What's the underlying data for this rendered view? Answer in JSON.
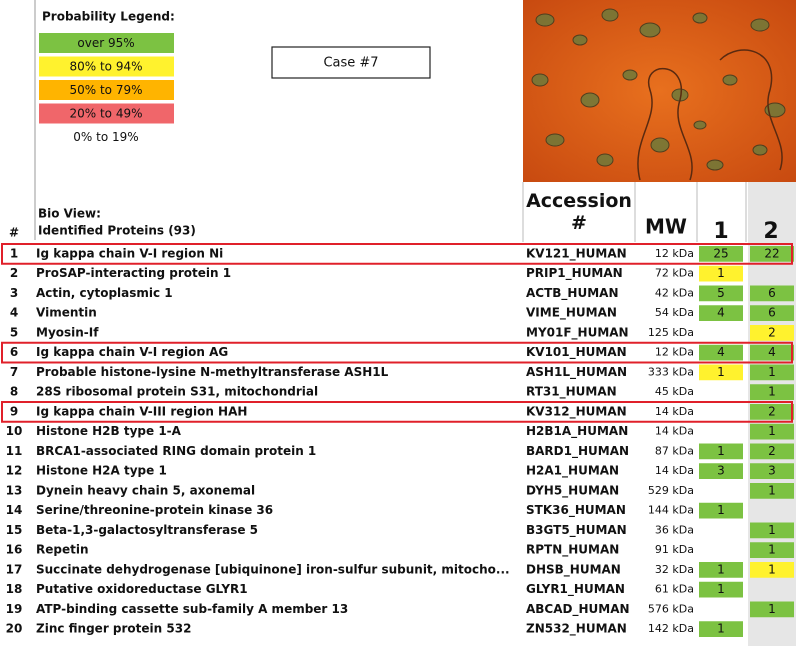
{
  "legend": {
    "title": "Probability Legend:",
    "items": [
      {
        "label": "over 95%",
        "color": "#7cc242"
      },
      {
        "label": "80% to 94%",
        "color": "#fff22e"
      },
      {
        "label": "50% to 79%",
        "color": "#ffb400"
      },
      {
        "label": "20% to  49%",
        "color": "#f0666a"
      },
      {
        "label": "0% to 19%",
        "color": "#ffffff"
      }
    ]
  },
  "case_label": "Case #7",
  "header": {
    "index": "#",
    "bio_view": "Bio View:",
    "identified": "Identified Proteins (93)",
    "accession": "Accession #",
    "mw": "MW",
    "sample1": "1",
    "sample2": "2"
  },
  "table": {
    "rows": [
      {
        "index": "1",
        "name": "Ig kappa chain V-I region Ni",
        "accession": "KV121_HUMAN",
        "mw": "12 kDa",
        "s1": {
          "value": 25,
          "color": "#7cc242"
        },
        "s2": {
          "value": 22,
          "color": "#7cc242"
        },
        "highlighted": true
      },
      {
        "index": "2",
        "name": "ProSAP-interacting protein 1",
        "accession": "PRIP1_HUMAN",
        "mw": "72 kDa",
        "s1": {
          "value": 1,
          "color": "#fff22e"
        },
        "s2": null,
        "highlighted": false
      },
      {
        "index": "3",
        "name": "Actin, cytoplasmic 1",
        "accession": "ACTB_HUMAN",
        "mw": "42 kDa",
        "s1": {
          "value": 5,
          "color": "#7cc242"
        },
        "s2": {
          "value": 6,
          "color": "#7cc242"
        },
        "highlighted": false
      },
      {
        "index": "4",
        "name": "Vimentin",
        "accession": "VIME_HUMAN",
        "mw": "54 kDa",
        "s1": {
          "value": 4,
          "color": "#7cc242"
        },
        "s2": {
          "value": 6,
          "color": "#7cc242"
        },
        "highlighted": false
      },
      {
        "index": "5",
        "name": "Myosin-If",
        "accession": "MY01F_HUMAN",
        "mw": "125 kDa",
        "s1": null,
        "s2": {
          "value": 2,
          "color": "#fff22e"
        },
        "highlighted": false
      },
      {
        "index": "6",
        "name": "Ig kappa chain V-I region AG",
        "accession": "KV101_HUMAN",
        "mw": "12 kDa",
        "s1": {
          "value": 4,
          "color": "#7cc242"
        },
        "s2": {
          "value": 4,
          "color": "#7cc242"
        },
        "highlighted": true
      },
      {
        "index": "7",
        "name": "Probable histone-lysine N-methyltransferase ASH1L",
        "accession": "ASH1L_HUMAN",
        "mw": "333 kDa",
        "s1": {
          "value": 1,
          "color": "#fff22e"
        },
        "s2": {
          "value": 1,
          "color": "#7cc242"
        },
        "highlighted": false
      },
      {
        "index": "8",
        "name": "28S ribosomal protein S31, mitochondrial",
        "accession": "RT31_HUMAN",
        "mw": "45 kDa",
        "s1": null,
        "s2": {
          "value": 1,
          "color": "#7cc242"
        },
        "highlighted": false
      },
      {
        "index": "9",
        "name": "Ig kappa chain V-III region HAH",
        "accession": "KV312_HUMAN",
        "mw": "14 kDa",
        "s1": null,
        "s2": {
          "value": 2,
          "color": "#7cc242"
        },
        "highlighted": true
      },
      {
        "index": "10",
        "name": "Histone H2B type 1-A",
        "accession": "H2B1A_HUMAN",
        "mw": "14 kDa",
        "s1": null,
        "s2": {
          "value": 1,
          "color": "#7cc242"
        },
        "highlighted": false
      },
      {
        "index": "11",
        "name": "BRCA1-associated RING domain protein 1",
        "accession": "BARD1_HUMAN",
        "mw": "87 kDa",
        "s1": {
          "value": 1,
          "color": "#7cc242"
        },
        "s2": {
          "value": 2,
          "color": "#7cc242"
        },
        "highlighted": false
      },
      {
        "index": "12",
        "name": "Histone H2A type 1",
        "accession": "H2A1_HUMAN",
        "mw": "14 kDa",
        "s1": {
          "value": 3,
          "color": "#7cc242"
        },
        "s2": {
          "value": 3,
          "color": "#7cc242"
        },
        "highlighted": false
      },
      {
        "index": "13",
        "name": "Dynein heavy chain 5, axonemal",
        "accession": "DYH5_HUMAN",
        "mw": "529 kDa",
        "s1": null,
        "s2": {
          "value": 1,
          "color": "#7cc242"
        },
        "highlighted": false
      },
      {
        "index": "14",
        "name": "Serine/threonine-protein kinase 36",
        "accession": "STK36_HUMAN",
        "mw": "144 kDa",
        "s1": {
          "value": 1,
          "color": "#7cc242"
        },
        "s2": null,
        "highlighted": false
      },
      {
        "index": "15",
        "name": "Beta-1,3-galactosyltransferase 5",
        "accession": "B3GT5_HUMAN",
        "mw": "36 kDa",
        "s1": null,
        "s2": {
          "value": 1,
          "color": "#7cc242"
        },
        "highlighted": false
      },
      {
        "index": "16",
        "name": "Repetin",
        "accession": "RPTN_HUMAN",
        "mw": "91 kDa",
        "s1": null,
        "s2": {
          "value": 1,
          "color": "#7cc242"
        },
        "highlighted": false
      },
      {
        "index": "17",
        "name": "Succinate dehydrogenase [ubiquinone] iron-sulfur subunit, mitocho...",
        "accession": "DHSB_HUMAN",
        "mw": "32 kDa",
        "s1": {
          "value": 1,
          "color": "#7cc242"
        },
        "s2": {
          "value": 1,
          "color": "#fff22e"
        },
        "highlighted": false
      },
      {
        "index": "18",
        "name": "Putative oxidoreductase GLYR1",
        "accession": "GLYR1_HUMAN",
        "mw": "61 kDa",
        "s1": {
          "value": 1,
          "color": "#7cc242"
        },
        "s2": null,
        "highlighted": false
      },
      {
        "index": "19",
        "name": "ATP-binding cassette sub-family A member 13",
        "accession": "ABCAD_HUMAN",
        "mw": "576 kDa",
        "s1": null,
        "s2": {
          "value": 1,
          "color": "#7cc242"
        },
        "highlighted": false
      },
      {
        "index": "20",
        "name": "Zinc finger protein 532",
        "accession": "ZN532_HUMAN",
        "mw": "142 kDa",
        "s1": {
          "value": 1,
          "color": "#7cc242"
        },
        "s2": null,
        "highlighted": false
      }
    ]
  }
}
